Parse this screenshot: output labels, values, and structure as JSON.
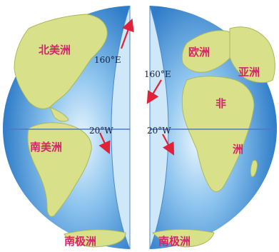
{
  "map": {
    "labels": {
      "north_america": "北美洲",
      "south_america": "南美洲",
      "antarctica_left": "南极洲",
      "antarctica_right": "南极洲",
      "europe": "欧洲",
      "asia": "亚洲",
      "africa_top": "非",
      "africa_bottom": "洲",
      "meridian_left_160e": "160°E",
      "meridian_left_20w": "20°W",
      "meridian_right_160e": "160°E",
      "meridian_right_20w": "20°W"
    },
    "colors": {
      "ocean": "#3f8fd6",
      "ocean_highlight": "#eaf6ff",
      "land": "#d8e08a",
      "land_dark": "#b7c66a",
      "cut_face": "#cfe8f9",
      "equator": "#4f79c9",
      "arrow": "#e0213a",
      "label": "#d6246b"
    }
  }
}
